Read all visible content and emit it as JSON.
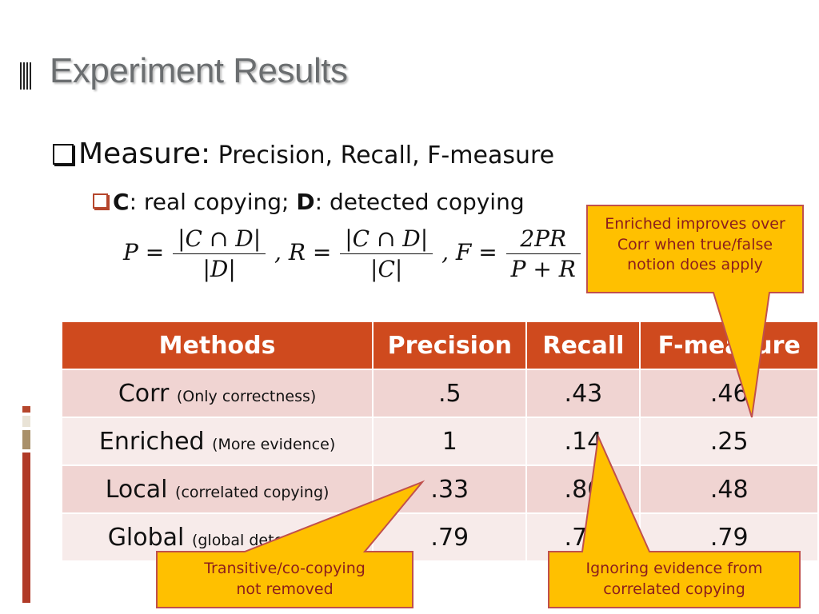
{
  "slide": {
    "title": "Experiment Results",
    "bullet1_label": "Measure:",
    "bullet1_text": " Precision, Recall, F-measure",
    "bullet2_c": "C",
    "bullet2_mid": ": real copying; ",
    "bullet2_d": "D",
    "bullet2_end": ": detected copying"
  },
  "formula": {
    "p_lhs": "P =",
    "p_num": "C ∩ D",
    "p_den": "D",
    "r_lhs": ", R =",
    "r_num": "C ∩ D",
    "r_den": "C",
    "f_lhs": ", F =",
    "f_num": "2PR",
    "f_den": "P + R"
  },
  "table": {
    "headers": [
      "Methods",
      "Precision",
      "Recall",
      "F-measure"
    ],
    "rows": [
      {
        "method": "Corr",
        "note": "(Only correctness)",
        "precision": ".5",
        "recall": ".43",
        "fmeasure": ".46"
      },
      {
        "method": "Enriched",
        "note": "(More evidence)",
        "precision": "1",
        "recall": ".14",
        "fmeasure": ".25"
      },
      {
        "method": "Local",
        "note": "(correlated copying)",
        "precision": ".33",
        "recall": ".86",
        "fmeasure": ".48"
      },
      {
        "method": "Global",
        "note": "(global detection)",
        "precision": ".79",
        "recall": ".79",
        "fmeasure": ".79"
      }
    ]
  },
  "callouts": {
    "enriched": [
      "Enriched improves over",
      "Corr when true/false",
      "notion does apply"
    ],
    "transitive": [
      "Transitive/co-copying",
      "not removed"
    ],
    "ignoring": [
      "Ignoring evidence from",
      "correlated copying"
    ]
  },
  "colors": {
    "header_bg": "#cf4a1e",
    "callout_fill": "#ffc000",
    "callout_stroke": "#c0504d",
    "callout_text": "#8b1d1d"
  }
}
